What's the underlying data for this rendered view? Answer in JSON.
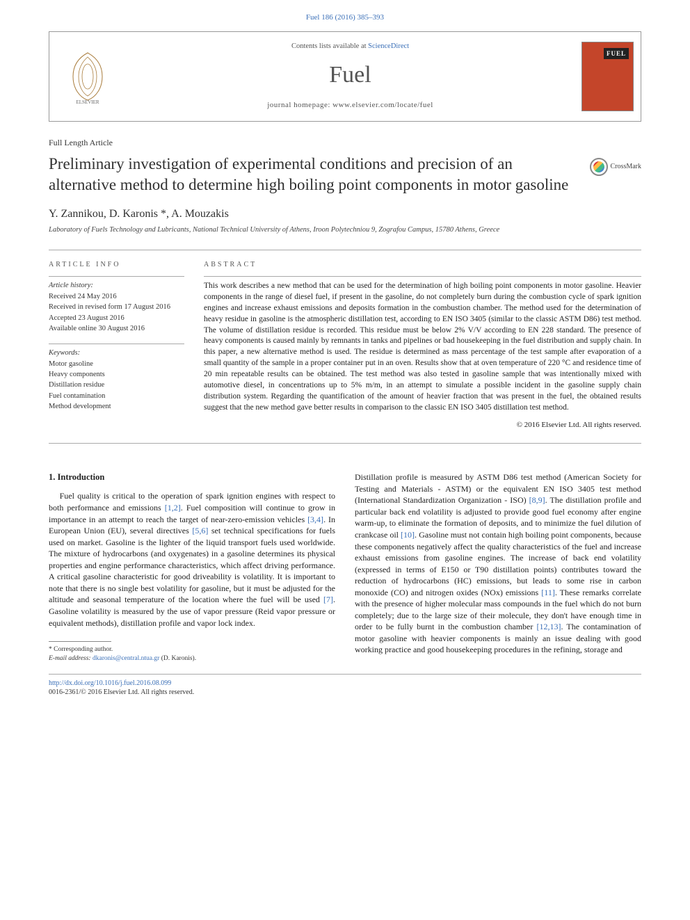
{
  "header": {
    "page_ref": "Fuel 186 (2016) 385–393",
    "contents_prefix": "Contents lists available at ",
    "contents_link": "ScienceDirect",
    "journal": "Fuel",
    "homepage_prefix": "journal homepage: ",
    "homepage": "www.elsevier.com/locate/fuel"
  },
  "article": {
    "type": "Full Length Article",
    "title": "Preliminary investigation of experimental conditions and precision of an alternative method to determine high boiling point components in motor gasoline",
    "crossmark": "CrossMark",
    "authors": "Y. Zannikou, D. Karonis *, A. Mouzakis",
    "affiliation": "Laboratory of Fuels Technology and Lubricants, National Technical University of Athens, Iroon Polytechniou 9, Zografou Campus, 15780 Athens, Greece"
  },
  "info": {
    "heading": "ARTICLE INFO",
    "history_title": "Article history:",
    "history": [
      "Received 24 May 2016",
      "Received in revised form 17 August 2016",
      "Accepted 23 August 2016",
      "Available online 30 August 2016"
    ],
    "keywords_title": "Keywords:",
    "keywords": [
      "Motor gasoline",
      "Heavy components",
      "Distillation residue",
      "Fuel contamination",
      "Method development"
    ]
  },
  "abstract": {
    "heading": "ABSTRACT",
    "text": "This work describes a new method that can be used for the determination of high boiling point components in motor gasoline. Heavier components in the range of diesel fuel, if present in the gasoline, do not completely burn during the combustion cycle of spark ignition engines and increase exhaust emissions and deposits formation in the combustion chamber. The method used for the determination of heavy residue in gasoline is the atmospheric distillation test, according to EN ISO 3405 (similar to the classic ASTM D86) test method. The volume of distillation residue is recorded. This residue must be below 2% V/V according to EN 228 standard. The presence of heavy components is caused mainly by remnants in tanks and pipelines or bad housekeeping in the fuel distribution and supply chain. In this paper, a new alternative method is used. The residue is determined as mass percentage of the test sample after evaporation of a small quantity of the sample in a proper container put in an oven. Results show that at oven temperature of 220 °C and residence time of 20 min repeatable results can be obtained. The test method was also tested in gasoline sample that was intentionally mixed with automotive diesel, in concentrations up to 5% m/m, in an attempt to simulate a possible incident in the gasoline supply chain distribution system. Regarding the quantification of the amount of heavier fraction that was present in the fuel, the obtained results suggest that the new method gave better results in comparison to the classic EN ISO 3405 distillation test method.",
    "copyright": "© 2016 Elsevier Ltd. All rights reserved."
  },
  "body": {
    "intro_heading": "1. Introduction",
    "col1_html": "Fuel quality is critical to the operation of spark ignition engines with respect to both performance and emissions <span class=\"ref-link\">[1,2]</span>. Fuel composition will continue to grow in importance in an attempt to reach the target of near-zero-emission vehicles <span class=\"ref-link\">[3,4]</span>. In European Union (EU), several directives <span class=\"ref-link\">[5,6]</span> set technical specifications for fuels used on market. Gasoline is the lighter of the liquid transport fuels used worldwide. The mixture of hydrocarbons (and oxygenates) in a gasoline determines its physical properties and engine performance characteristics, which affect driving performance. A critical gasoline characteristic for good driveability is volatility. It is important to note that there is no single best volatility for gasoline, but it must be adjusted for the altitude and seasonal temperature of the location where the fuel will be used <span class=\"ref-link\">[7]</span>. Gasoline volatility is measured by the use of vapor pressure (Reid vapor pressure or equivalent methods), distillation profile and vapor lock index.",
    "col2_html": "Distillation profile is measured by ASTM D86 test method (American Society for Testing and Materials - ASTM) or the equivalent EN ISO 3405 test method (International Standardization Organization - ISO) <span class=\"ref-link\">[8,9]</span>. The distillation profile and particular back end volatility is adjusted to provide good fuel economy after engine warm-up, to eliminate the formation of deposits, and to minimize the fuel dilution of crankcase oil <span class=\"ref-link\">[10]</span>. Gasoline must not contain high boiling point components, because these components negatively affect the quality characteristics of the fuel and increase exhaust emissions from gasoline engines. The increase of back end volatility (expressed in terms of E150 or T90 distillation points) contributes toward the reduction of hydrocarbons (HC) emissions, but leads to some rise in carbon monoxide (CO) and nitrogen oxides (NOx) emissions <span class=\"ref-link\">[11]</span>. These remarks correlate with the presence of higher molecular mass compounds in the fuel which do not burn completely; due to the large size of their molecule, they don't have enough time in order to be fully burnt in the combustion chamber <span class=\"ref-link\">[12,13]</span>. The contamination of motor gasoline with heavier components is mainly an issue dealing with good working practice and good housekeeping procedures in the refining, storage and"
  },
  "footnote": {
    "corr": "* Corresponding author.",
    "email_label": "E-mail address: ",
    "email": "dkaronis@central.ntua.gr",
    "email_suffix": " (D. Karonis)."
  },
  "footer": {
    "doi": "http://dx.doi.org/10.1016/j.fuel.2016.08.099",
    "issn_line": "0016-2361/© 2016 Elsevier Ltd. All rights reserved."
  },
  "colors": {
    "link": "#3a6fb7",
    "cover": "#c4452a",
    "text": "#222222",
    "rule": "#aaaaaa"
  }
}
